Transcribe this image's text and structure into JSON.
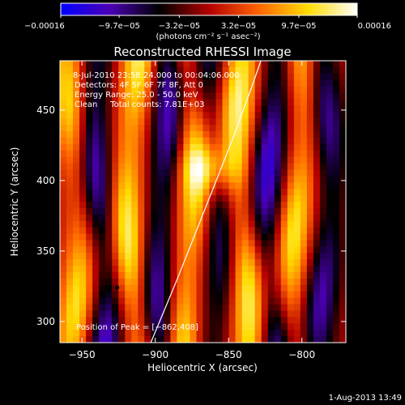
{
  "chart_data": {
    "type": "heatmap",
    "title": "Reconstructed RHESSI Image",
    "xlabel": "Heliocentric X (arcsec)",
    "ylabel": "Heliocentric Y (arcsec)",
    "xlim": [
      -965,
      -770
    ],
    "ylim": [
      285,
      485
    ],
    "x_ticks": [
      -950,
      -900,
      -850,
      -800
    ],
    "y_ticks": [
      300,
      350,
      400,
      450
    ],
    "x_tick_labels": [
      "−950",
      "−900",
      "−850",
      "−800"
    ],
    "y_tick_labels": [
      "300",
      "350",
      "400",
      "450"
    ],
    "colorbar": {
      "min": -0.00016,
      "max": 0.00016,
      "ticks": [
        -0.00016,
        -9.7e-05,
        -3.2e-05,
        3.2e-05,
        9.7e-05,
        0.00016
      ],
      "tick_labels": [
        "−0.00016",
        "−9.7e−05",
        "−3.2e−05",
        "3.2e−05",
        "9.7e−05",
        "0.00016"
      ],
      "unit_label": "(photons cm⁻² s⁻¹ asec⁻²)",
      "colormap_stops": [
        "#0000ff",
        "#4b00b4",
        "#000000",
        "#b40000",
        "#ff6400",
        "#ffdc00",
        "#ffffff"
      ]
    },
    "annotations": [
      "8-Jul-2010 23:58:24.000 to 00:04:06.000",
      "Detectors: 4F 5F 6F 7F 8F, Att 0",
      "Energy Range: 25.0 - 50.0 keV",
      "Clean     Total counts: 7.81E+03"
    ],
    "peak_label": "Position of Peak = [−862,408]",
    "peak": {
      "x": -862,
      "y": 408
    },
    "min_marker": {
      "x": -926,
      "y": 324
    },
    "limb_curve": [
      {
        "x": -903,
        "y": 285
      },
      {
        "x": -885,
        "y": 330
      },
      {
        "x": -866,
        "y": 380
      },
      {
        "x": -847,
        "y": 430
      },
      {
        "x": -833,
        "y": 470
      },
      {
        "x": -828,
        "y": 485
      }
    ],
    "stripe_centers_x": [
      -955,
      -938,
      -915,
      -895,
      -877,
      -860,
      -840,
      -820,
      -803,
      -785
    ],
    "stripe_amplitudes": [
      0.7,
      -0.8,
      0.85,
      -0.75,
      0.8,
      -0.55,
      0.85,
      -0.8,
      0.75,
      -0.65
    ]
  },
  "footer": {
    "date": "1-Aug-2013 13:49"
  }
}
